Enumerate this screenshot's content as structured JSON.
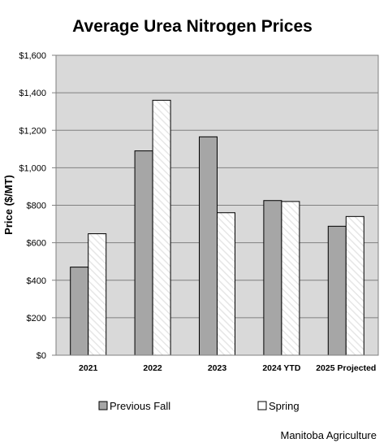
{
  "chart_data": {
    "type": "bar",
    "title": "Average Urea Nitrogen Prices",
    "ylabel": "Price ($/MT)",
    "xlabel": "",
    "categories": [
      "2021",
      "2022",
      "2023",
      "2024 YTD",
      "2025 Projected"
    ],
    "series": [
      {
        "name": "Previous Fall",
        "values": [
          470,
          1090,
          1165,
          825,
          688
        ],
        "color": "#a6a6a6",
        "pattern": "solid"
      },
      {
        "name": "Spring",
        "values": [
          648,
          1360,
          760,
          820,
          740
        ],
        "color": "#ffffff",
        "pattern": "diagonal-stripe"
      }
    ],
    "ylim": [
      0,
      1600
    ],
    "yticks": [
      0,
      200,
      400,
      600,
      800,
      1000,
      1200,
      1400,
      1600
    ],
    "ytick_labels": [
      "$0",
      "$200",
      "$400",
      "$600",
      "$800",
      "$1,000",
      "$1,200",
      "$1,400",
      "$1,600"
    ],
    "grid": true,
    "plot_background": "#d9d9d9",
    "legend_position": "bottom"
  },
  "credit": "Manitoba Agriculture"
}
